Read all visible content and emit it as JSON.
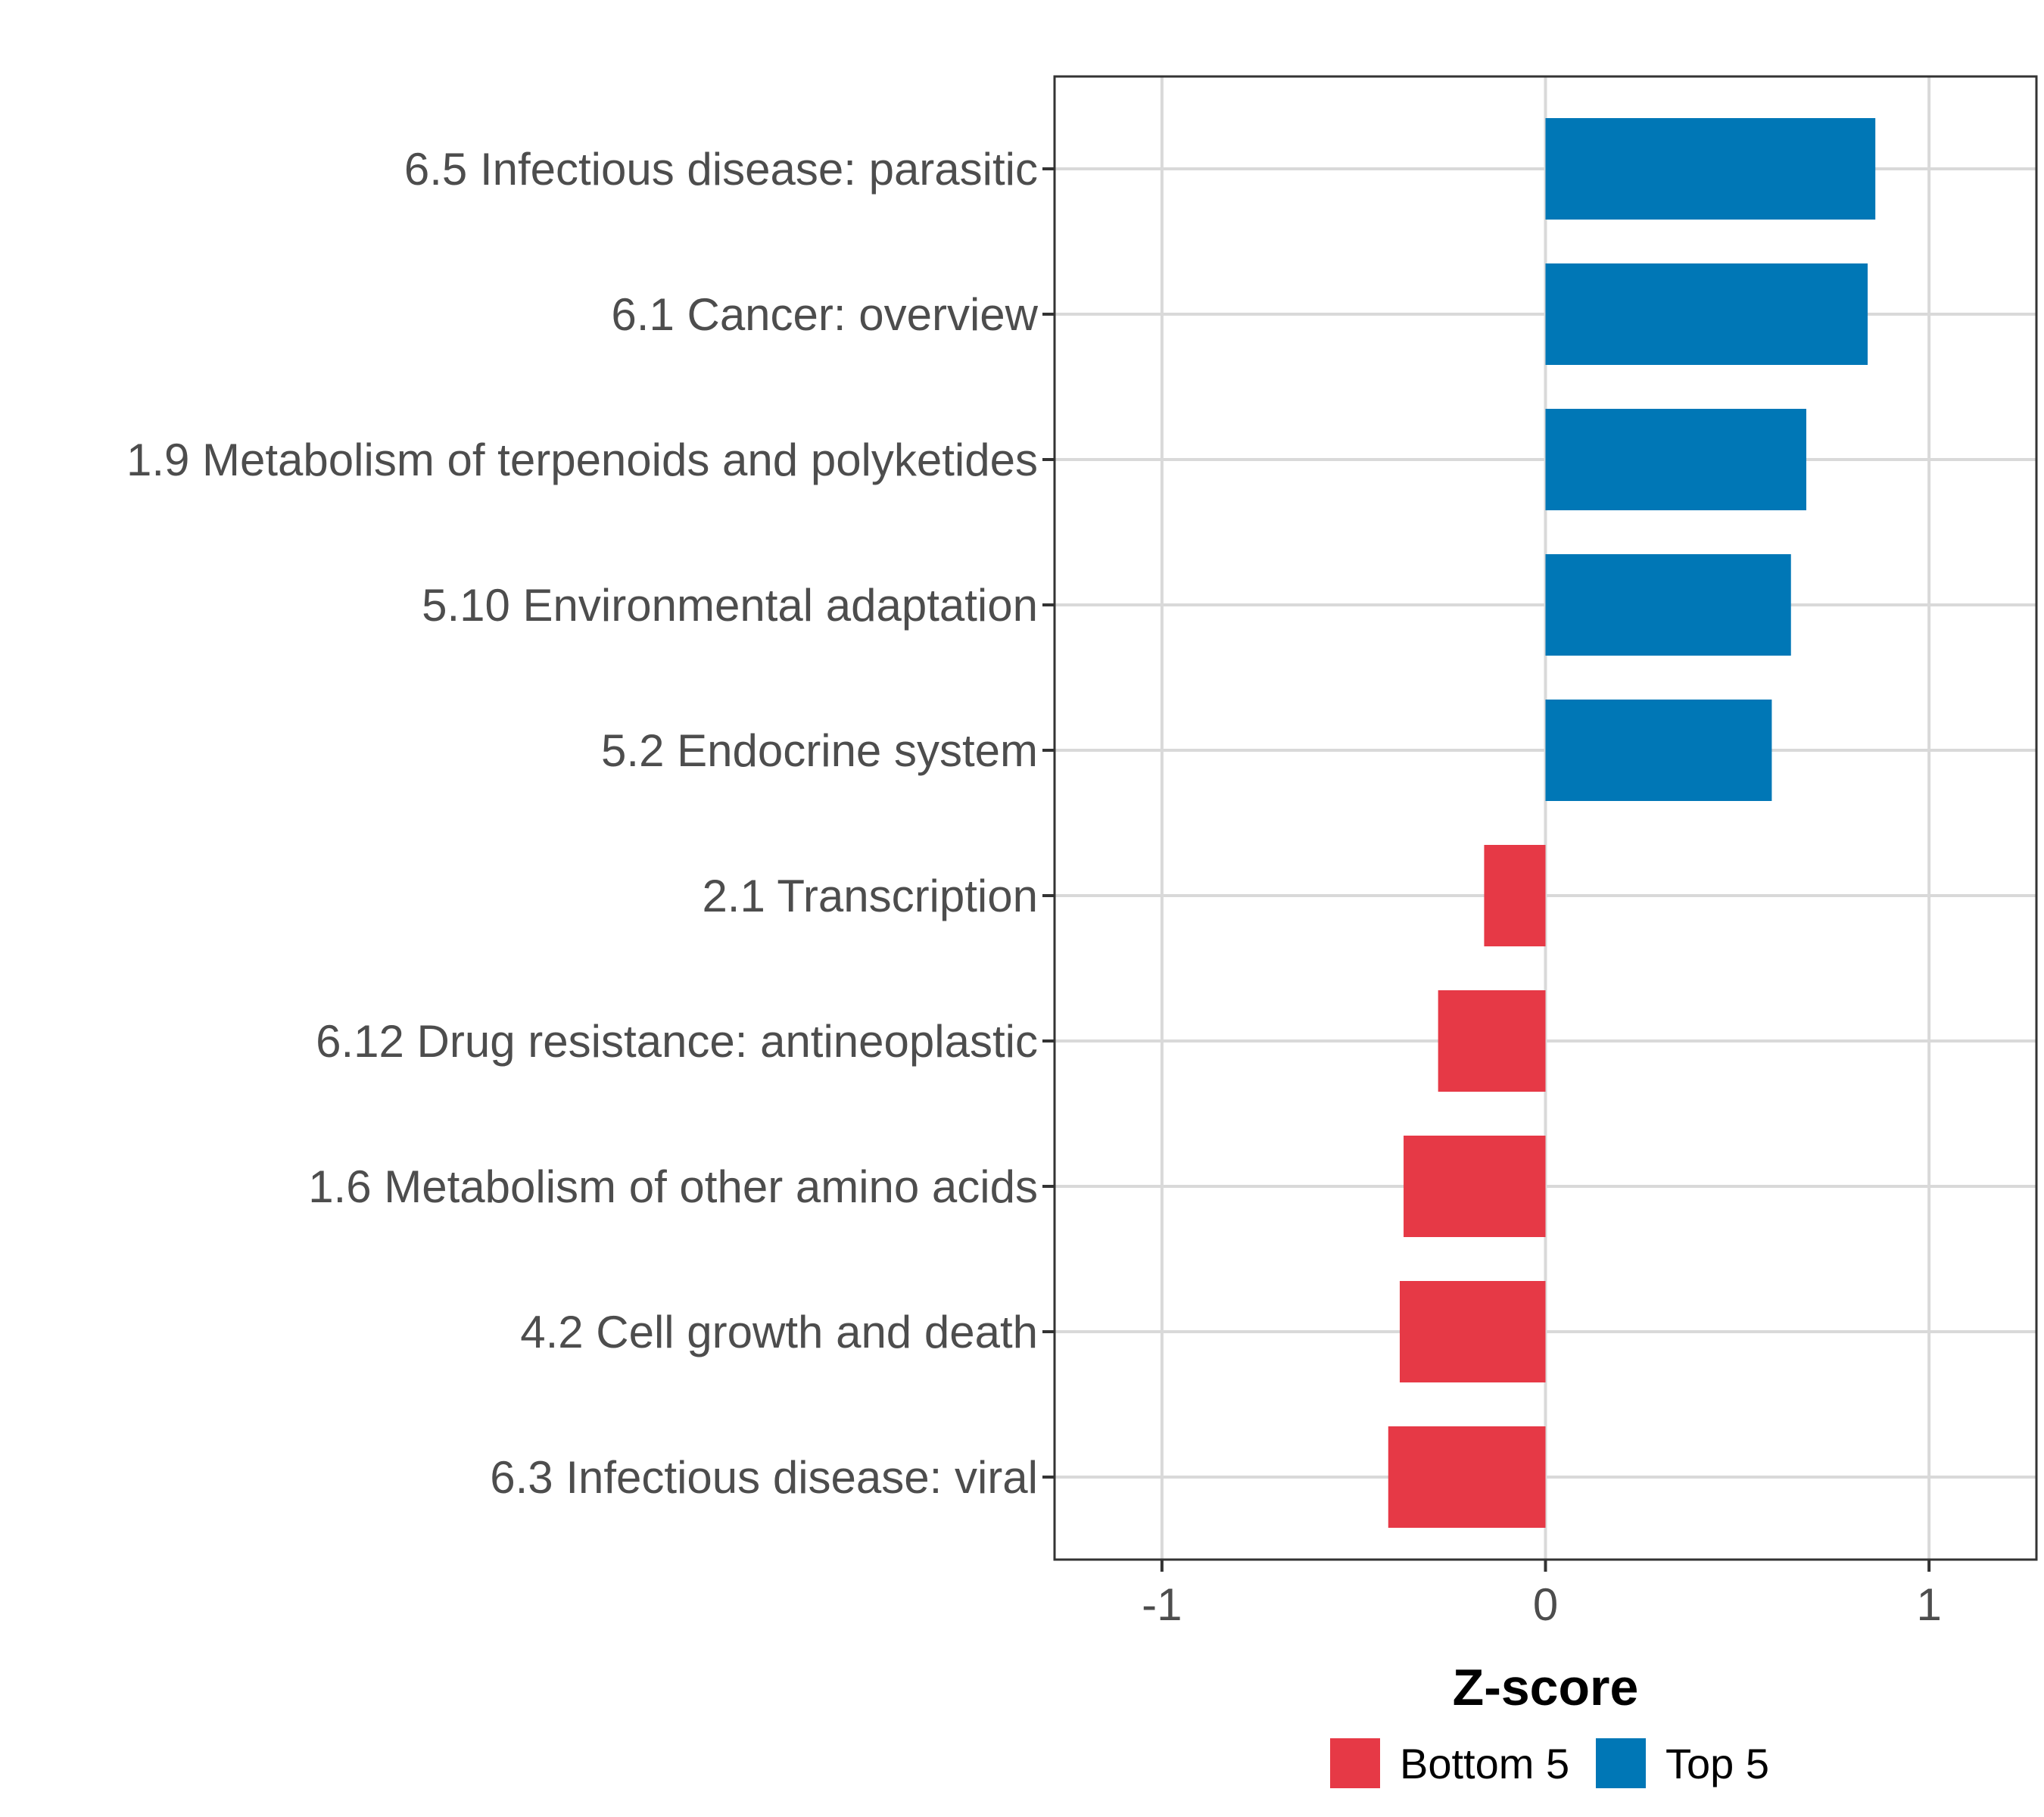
{
  "chart_data": {
    "type": "bar",
    "orientation": "horizontal",
    "categories": [
      "6.5 Infectious disease: parasitic",
      "6.1 Cancer: overview",
      "1.9 Metabolism of terpenoids and polyketides",
      "5.10 Environmental adaptation",
      "5.2 Endocrine system",
      "2.1 Transcription",
      "6.12 Drug resistance: antineoplastic",
      "1.6 Metabolism of other amino acids",
      "4.2 Cell growth and death",
      "6.3 Infectious disease: viral"
    ],
    "values": [
      0.86,
      0.84,
      0.68,
      0.64,
      0.59,
      -0.16,
      -0.28,
      -0.37,
      -0.38,
      -0.41
    ],
    "groups": [
      "Top 5",
      "Top 5",
      "Top 5",
      "Top 5",
      "Top 5",
      "Bottom 5",
      "Bottom 5",
      "Bottom 5",
      "Bottom 5",
      "Bottom 5"
    ],
    "xlabel": "Z-score",
    "ylabel": "",
    "xlim": [
      -1.28,
      1.28
    ],
    "xticks": [
      -1,
      0,
      1
    ],
    "xtick_labels": [
      "-1",
      "0",
      "1"
    ],
    "grid": true,
    "legend": {
      "placement": "bottom",
      "entries": [
        {
          "name": "Bottom 5",
          "color": "#E63946"
        },
        {
          "name": "Top 5",
          "color": "#0077B6"
        }
      ]
    }
  }
}
